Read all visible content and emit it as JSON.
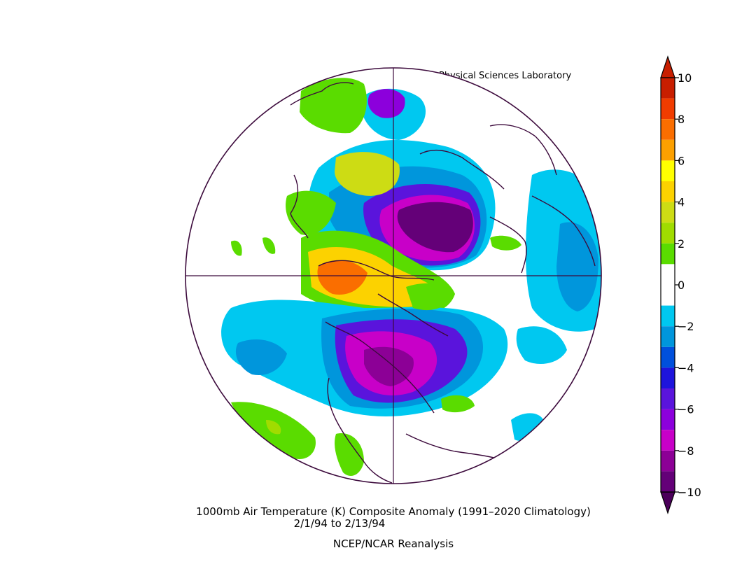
{
  "header": {
    "credit": "NOAA Physical Sciences Laboratory"
  },
  "footer": {
    "title_line1": "1000mb Air Temperature (K) Composite Anomaly (1991–2020 Climatology)",
    "title_line2": "2/1/94  to 2/13/94",
    "source": "NCEP/NCAR Reanalysis"
  },
  "map": {
    "projection": "north-polar-stereographic",
    "variable": "1000mb Air Temperature anomaly",
    "units": "K",
    "regions": [
      {
        "name": "eurasia-cold-core",
        "level": -10
      },
      {
        "name": "north-america-cold-core",
        "level": -8
      },
      {
        "name": "arctic-warm-pool",
        "level": 8
      },
      {
        "name": "atlantic-cool-patch",
        "level": -2
      },
      {
        "name": "pacific-cool-patch",
        "level": -2
      }
    ]
  },
  "colorbar": {
    "labels": [
      "10",
      "8",
      "6",
      "4",
      "2",
      "0",
      "−2",
      "−4",
      "−6",
      "−8",
      "−10"
    ],
    "levels": [
      10,
      8,
      6,
      4,
      2,
      0,
      -2,
      -4,
      -6,
      -8,
      -10
    ],
    "bins": [
      {
        "lo": 9,
        "hi": 10,
        "color": "#c81e00"
      },
      {
        "lo": 8,
        "hi": 9,
        "color": "#f03c00"
      },
      {
        "lo": 7,
        "hi": 8,
        "color": "#fa6e00"
      },
      {
        "lo": 6,
        "hi": 7,
        "color": "#fca000"
      },
      {
        "lo": 5,
        "hi": 6,
        "color": "#ffff00"
      },
      {
        "lo": 4,
        "hi": 5,
        "color": "#fcd200"
      },
      {
        "lo": 3,
        "hi": 4,
        "color": "#cddc14"
      },
      {
        "lo": 2,
        "hi": 3,
        "color": "#a0dc00"
      },
      {
        "lo": 1,
        "hi": 2,
        "color": "#5adc00"
      },
      {
        "lo": -1,
        "hi": 1,
        "color": "#ffffff"
      },
      {
        "lo": -2,
        "hi": -1,
        "color": "#00c8f0"
      },
      {
        "lo": -3,
        "hi": -2,
        "color": "#0096dc"
      },
      {
        "lo": -4,
        "hi": -3,
        "color": "#0050dc"
      },
      {
        "lo": -5,
        "hi": -4,
        "color": "#1e14dc"
      },
      {
        "lo": -6,
        "hi": -5,
        "color": "#5a14dc"
      },
      {
        "lo": -7,
        "hi": -6,
        "color": "#8c00dc"
      },
      {
        "lo": -8,
        "hi": -7,
        "color": "#c800c8"
      },
      {
        "lo": -9,
        "hi": -8,
        "color": "#8c0096"
      },
      {
        "lo": -10,
        "hi": -9,
        "color": "#640078"
      }
    ],
    "top_arrow_color": "#c81e00",
    "bottom_arrow_color": "#4b005a"
  },
  "colors": {
    "coastline": "#3c0a3c",
    "background": "#ffffff"
  }
}
